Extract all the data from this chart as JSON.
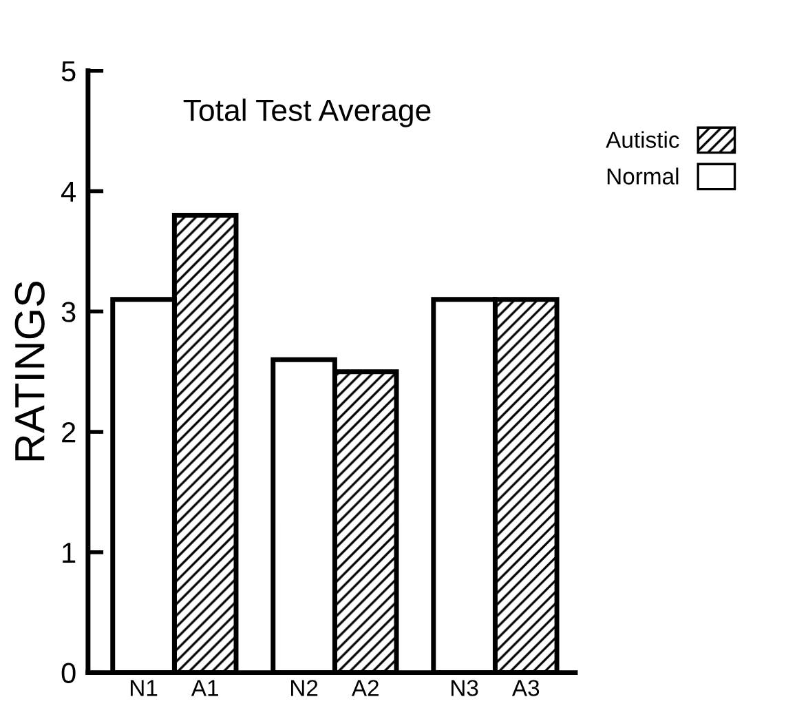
{
  "chart_data": {
    "type": "bar",
    "title": "Total Test Average",
    "ylabel": "RATINGS",
    "categories": [
      "N1",
      "A1",
      "N2",
      "A2",
      "N3",
      "A3"
    ],
    "series": [
      {
        "name": "Autistic",
        "color": "#000000",
        "values": [
          null,
          3.8,
          null,
          2.5,
          null,
          3.1
        ]
      },
      {
        "name": "Normal",
        "color": "#ffffff",
        "values": [
          3.1,
          null,
          2.6,
          null,
          3.1,
          null
        ]
      }
    ],
    "ylim": [
      0,
      5
    ],
    "yticks": [
      0,
      1,
      2,
      3,
      4,
      5
    ],
    "grid": false,
    "legend": "top right"
  }
}
